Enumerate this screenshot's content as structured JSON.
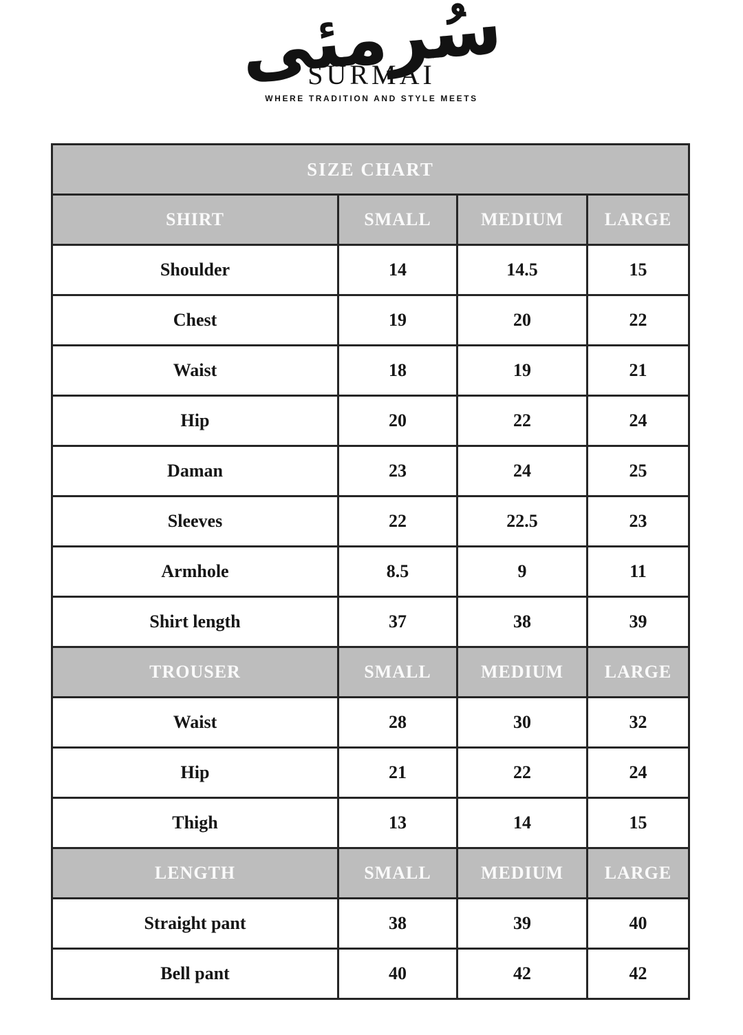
{
  "brand": {
    "calligraphy": "سُرمئی",
    "name": "SURMAI",
    "tagline": "WHERE TRADITION AND STYLE MEETS"
  },
  "table": {
    "title": "SIZE CHART",
    "sections": [
      {
        "label": "SHIRT",
        "columns": [
          "SMALL",
          "MEDIUM",
          "LARGE"
        ],
        "rows": [
          {
            "label": "Shoulder",
            "values": [
              "14",
              "14.5",
              "15"
            ]
          },
          {
            "label": "Chest",
            "values": [
              "19",
              "20",
              "22"
            ]
          },
          {
            "label": "Waist",
            "values": [
              "18",
              "19",
              "21"
            ]
          },
          {
            "label": "Hip",
            "values": [
              "20",
              "22",
              "24"
            ]
          },
          {
            "label": "Daman",
            "values": [
              "23",
              "24",
              "25"
            ]
          },
          {
            "label": "Sleeves",
            "values": [
              "22",
              "22.5",
              "23"
            ]
          },
          {
            "label": "Armhole",
            "values": [
              "8.5",
              "9",
              "11"
            ]
          },
          {
            "label": "Shirt length",
            "values": [
              "37",
              "38",
              "39"
            ]
          }
        ]
      },
      {
        "label": "TROUSER",
        "columns": [
          "SMALL",
          "MEDIUM",
          "LARGE"
        ],
        "rows": [
          {
            "label": "Waist",
            "values": [
              "28",
              "30",
              "32"
            ]
          },
          {
            "label": "Hip",
            "values": [
              "21",
              "22",
              "24"
            ]
          },
          {
            "label": "Thigh",
            "values": [
              "13",
              "14",
              "15"
            ]
          }
        ]
      },
      {
        "label": "LENGTH",
        "columns": [
          "SMALL",
          "MEDIUM",
          "LARGE"
        ],
        "rows": [
          {
            "label": "Straight pant",
            "values": [
              "38",
              "39",
              "40"
            ]
          },
          {
            "label": "Bell pant",
            "values": [
              "40",
              "42",
              "42"
            ]
          }
        ]
      }
    ]
  },
  "colors": {
    "header_bg": "#bdbdbd",
    "header_text": "#fafafa",
    "body_text": "#161616",
    "border": "#262626"
  }
}
